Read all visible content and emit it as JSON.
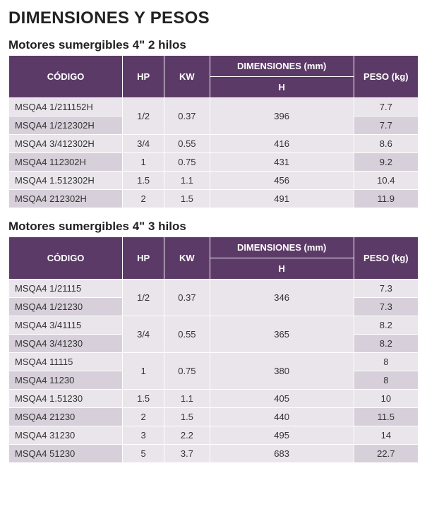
{
  "page_title": "DIMENSIONES Y PESOS",
  "labels": {
    "codigo": "CÓDIGO",
    "hp": "HP",
    "kw": "KW",
    "dim": "DIMENSIONES (mm)",
    "dim_sub": "H",
    "peso": "PESO (kg)"
  },
  "colors": {
    "header_bg": "#5c3a67",
    "row_light": "#e9e5ea",
    "row_dark": "#d7d0da",
    "text": "#222222"
  },
  "sections": [
    {
      "title": "Motores sumergibles 4\" 2 hilos",
      "rows": [
        {
          "codigo": "MSQA4 1/211152H",
          "hp": "1/2",
          "kw": "0.37",
          "h": "396",
          "peso": "7.7",
          "span": 2
        },
        {
          "codigo": "MSQA4 1/212302H",
          "peso": "7.7"
        },
        {
          "codigo": "MSQA4 3/412302H",
          "hp": "3/4",
          "kw": "0.55",
          "h": "416",
          "peso": "8.6",
          "span": 1
        },
        {
          "codigo": "MSQA4 112302H",
          "hp": "1",
          "kw": "0.75",
          "h": "431",
          "peso": "9.2",
          "span": 1
        },
        {
          "codigo": "MSQA4 1.512302H",
          "hp": "1.5",
          "kw": "1.1",
          "h": "456",
          "peso": "10.4",
          "span": 1
        },
        {
          "codigo": "MSQA4 212302H",
          "hp": "2",
          "kw": "1.5",
          "h": "491",
          "peso": "11.9",
          "span": 1
        }
      ]
    },
    {
      "title": "Motores sumergibles 4\" 3 hilos",
      "rows": [
        {
          "codigo": "MSQA4 1/21115",
          "hp": "1/2",
          "kw": "0.37",
          "h": "346",
          "peso": "7.3",
          "span": 2
        },
        {
          "codigo": "MSQA4 1/21230",
          "peso": "7.3"
        },
        {
          "codigo": "MSQA4 3/41115",
          "hp": "3/4",
          "kw": "0.55",
          "h": "365",
          "peso": "8.2",
          "span": 2
        },
        {
          "codigo": "MSQA4 3/41230",
          "peso": "8.2"
        },
        {
          "codigo": "MSQA4 11115",
          "hp": "1",
          "kw": "0.75",
          "h": "380",
          "peso": "8",
          "span": 2
        },
        {
          "codigo": "MSQA4 11230",
          "peso": "8"
        },
        {
          "codigo": "MSQA4 1.51230",
          "hp": "1.5",
          "kw": "1.1",
          "h": "405",
          "peso": "10",
          "span": 1
        },
        {
          "codigo": "MSQA4 21230",
          "hp": "2",
          "kw": "1.5",
          "h": "440",
          "peso": "11.5",
          "span": 1
        },
        {
          "codigo": "MSQA4 31230",
          "hp": "3",
          "kw": "2.2",
          "h": "495",
          "peso": "14",
          "span": 1
        },
        {
          "codigo": "MSQA4 51230",
          "hp": "5",
          "kw": "3.7",
          "h": "683",
          "peso": "22.7",
          "span": 1
        }
      ]
    }
  ]
}
